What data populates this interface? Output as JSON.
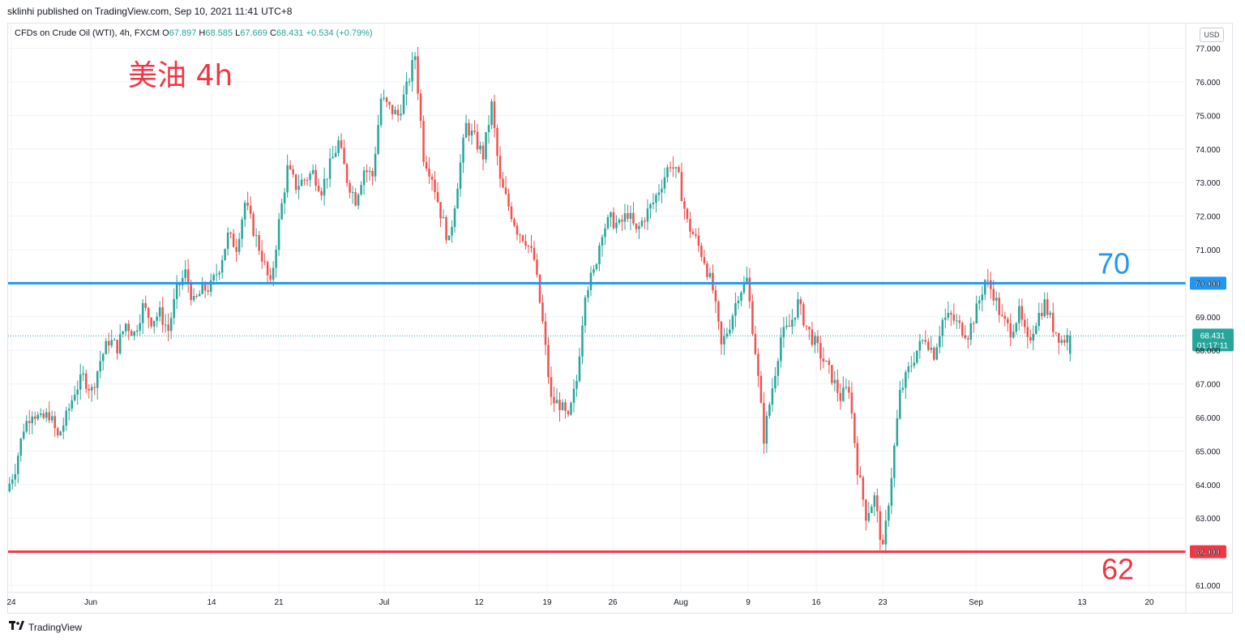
{
  "publisher_line": "sklinhi published on TradingView.com, Sep 10, 2021 11:41 UTC+8",
  "legend": {
    "symbol": "CFDs on Crude Oil (WTI), 4h, FXCM",
    "open_label": "O",
    "open": "67.897",
    "high_label": "H",
    "high": "68.585",
    "low_label": "L",
    "low": "67.669",
    "close_label": "C",
    "close": "68.431",
    "change": "+0.534 (+0.79%)"
  },
  "annotation_title": "美油 4h",
  "currency_button": "USD",
  "footer_brand": "TradingView",
  "footer_brand_icon": "tradingview-logo-icon",
  "chart_data": {
    "type": "candlestick",
    "timeframe": "4h",
    "ylim": [
      60.8,
      77.4
    ],
    "y_ticks": [
      "61.000",
      "62.000",
      "63.000",
      "64.000",
      "65.000",
      "66.000",
      "67.000",
      "68.000",
      "69.000",
      "70.000",
      "71.000",
      "72.000",
      "73.000",
      "74.000",
      "75.000",
      "76.000",
      "77.000"
    ],
    "x_ticks": [
      "24",
      "Jun",
      "14",
      "21",
      "Jul",
      "12",
      "19",
      "26",
      "Aug",
      "9",
      "16",
      "23",
      "Sep",
      "13",
      "20"
    ],
    "horizontal_lines": [
      {
        "value": 70.0,
        "label": "70.000",
        "annotation": "70",
        "color": "#2196f3"
      },
      {
        "value": 62.0,
        "label": "62.000",
        "annotation": "62",
        "color": "#f23645"
      }
    ],
    "last_price": {
      "value": 68.431,
      "label": "68.431",
      "countdown": "01:17:11",
      "color": "#26a69a"
    },
    "colors": {
      "up": "#26a69a",
      "down": "#ef5350",
      "grid": "#f0f3fa",
      "line70": "#2196f3",
      "line62": "#f23645"
    },
    "path_closes": [
      63.8,
      64.5,
      65.7,
      66.2,
      65.9,
      66.1,
      65.4,
      66.0,
      66.8,
      67.2,
      66.8,
      67.7,
      68.3,
      68.1,
      68.8,
      68.5,
      69.3,
      68.9,
      69.1,
      68.6,
      69.8,
      70.3,
      69.4,
      69.8,
      69.9,
      70.5,
      71.4,
      71.1,
      72.4,
      71.6,
      70.8,
      69.9,
      71.8,
      73.4,
      72.9,
      73.1,
      73.3,
      72.8,
      73.5,
      74.2,
      73.1,
      72.5,
      73.4,
      73.2,
      75.5,
      75.2,
      75.0,
      75.8,
      76.8,
      73.8,
      73.2,
      72.1,
      71.2,
      73.0,
      74.7,
      74.3,
      73.8,
      75.3,
      73.0,
      72.3,
      71.6,
      71.3,
      70.7,
      68.8,
      66.5,
      66.4,
      65.9,
      67.1,
      69.8,
      70.3,
      71.6,
      71.9,
      71.7,
      72.1,
      71.5,
      72.0,
      72.4,
      73.0,
      73.6,
      73.1,
      71.8,
      71.3,
      70.7,
      69.8,
      68.1,
      68.8,
      69.7,
      70.1,
      68.0,
      65.4,
      66.9,
      68.4,
      68.7,
      69.4,
      68.7,
      68.2,
      67.7,
      67.2,
      66.6,
      66.9,
      64.5,
      63.1,
      63.6,
      62.0,
      64.3,
      66.7,
      67.4,
      68.0,
      68.4,
      67.9,
      68.9,
      69.0,
      68.7,
      68.5,
      69.2,
      70.1,
      69.7,
      68.9,
      68.6,
      69.1,
      68.2,
      68.9,
      69.4,
      68.7,
      68.3,
      68.431
    ],
    "last_candle": {
      "open": 67.897,
      "high": 68.585,
      "low": 67.669,
      "close": 68.431
    }
  }
}
